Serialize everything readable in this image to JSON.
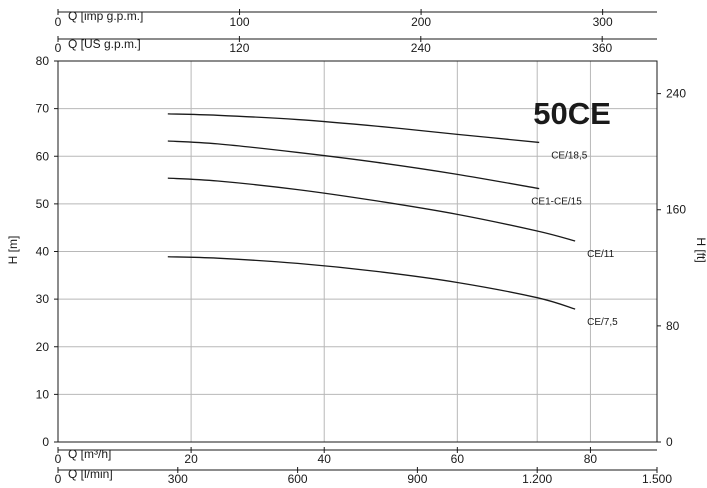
{
  "chart_data": {
    "type": "line",
    "title": "50CE",
    "ylabel_left": "H [m]",
    "ylabel_right": "H [ft]",
    "xlabel_bottom_1": "Q [m³/h]",
    "xlabel_bottom_2": "Q [l/min]",
    "xlabel_top_1": "Q [imp g.p.m.]",
    "xlabel_top_2": "Q [US g.p.m.]",
    "xlim_l_min": [
      0,
      1500
    ],
    "ylim_m": [
      0,
      80
    ],
    "grid": true,
    "y_ticks_m": [
      "0",
      "10",
      "20",
      "30",
      "40",
      "50",
      "60",
      "70",
      "80"
    ],
    "y_ticks_ft": [
      "0",
      "80",
      "160",
      "240"
    ],
    "x_ticks_l_min": [
      "0",
      "300",
      "600",
      "900",
      "1.200",
      "1.500"
    ],
    "x_ticks_m3h": [
      "0",
      "20",
      "40",
      "60",
      "80"
    ],
    "x_ticks_imp": [
      "0",
      "100",
      "200",
      "300"
    ],
    "x_ticks_us": [
      "0",
      "120",
      "240",
      "360"
    ],
    "series": [
      {
        "name": "CE/18,5",
        "x": [
          275,
          400,
          600,
          800,
          1000,
          1205
        ],
        "y": [
          68.9,
          68.6,
          67.7,
          66.3,
          64.6,
          62.9
        ]
      },
      {
        "name": "CE1-CE/15",
        "x": [
          275,
          400,
          600,
          800,
          1000,
          1205
        ],
        "y": [
          63.2,
          62.6,
          60.8,
          58.7,
          56.2,
          53.2
        ]
      },
      {
        "name": "CE/11",
        "x": [
          275,
          400,
          600,
          800,
          1000,
          1200,
          1295
        ],
        "y": [
          55.4,
          54.8,
          53.0,
          50.6,
          47.8,
          44.3,
          42.2
        ]
      },
      {
        "name": "CE/7,5",
        "x": [
          275,
          400,
          600,
          800,
          1000,
          1200,
          1295
        ],
        "y": [
          38.9,
          38.6,
          37.5,
          35.8,
          33.5,
          30.3,
          27.9
        ]
      }
    ]
  }
}
